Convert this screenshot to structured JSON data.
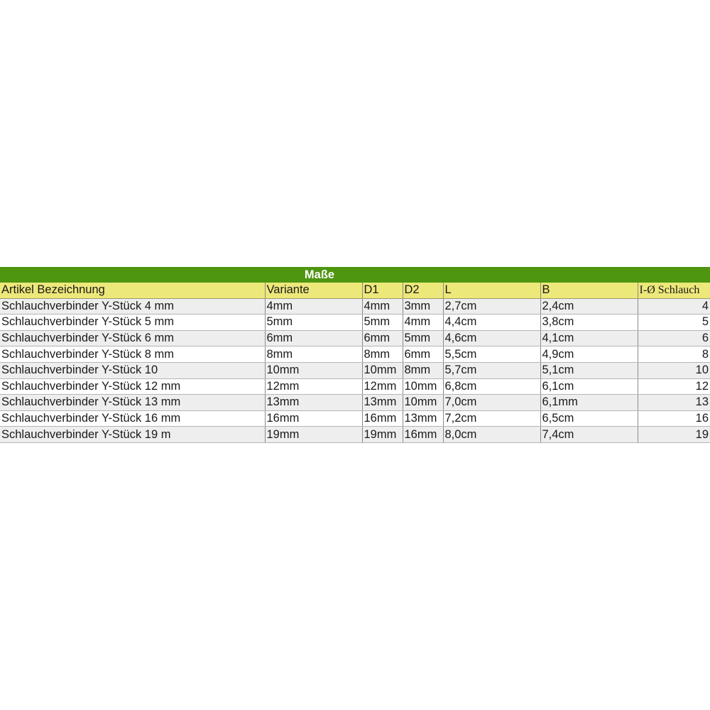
{
  "table": {
    "title": "Maße",
    "headers": [
      "Artikel Bezeichnung",
      "Variante",
      "D1",
      "D2",
      "L",
      "B",
      "I-Ø Schlauch"
    ],
    "rows": [
      [
        "Schlauchverbinder Y-Stück 4 mm",
        "4mm",
        "4mm",
        "3mm",
        "2,7cm",
        "2,4cm",
        "4"
      ],
      [
        "Schlauchverbinder Y-Stück 5 mm",
        "5mm",
        "5mm",
        "4mm",
        "4,4cm",
        "3,8cm",
        "5"
      ],
      [
        "Schlauchverbinder Y-Stück 6 mm",
        "6mm",
        "6mm",
        "5mm",
        "4,6cm",
        "4,1cm",
        "6"
      ],
      [
        "Schlauchverbinder Y-Stück 8 mm",
        "8mm",
        "8mm",
        "6mm",
        "5,5cm",
        "4,9cm",
        "8"
      ],
      [
        "Schlauchverbinder Y-Stück 10",
        "10mm",
        "10mm",
        "8mm",
        "5,7cm",
        "5,1cm",
        "10"
      ],
      [
        "Schlauchverbinder Y-Stück 12 mm",
        "12mm",
        "12mm",
        "10mm",
        "6,8cm",
        "6,1cm",
        "12"
      ],
      [
        "Schlauchverbinder Y-Stück 13 mm",
        "13mm",
        "13mm",
        "10mm",
        "7,0cm",
        "6,1mm",
        "13"
      ],
      [
        "Schlauchverbinder Y-Stück 16 mm",
        "16mm",
        "16mm",
        "13mm",
        "7,2cm",
        "6,5cm",
        "16"
      ],
      [
        "Schlauchverbinder Y-Stück 19 m",
        "19mm",
        "19mm",
        "16mm",
        "8,0cm",
        "7,4cm",
        "19"
      ]
    ],
    "colors": {
      "title_bg": "#4e9510",
      "header_bg": "#ede87a",
      "row_alt": "#eeeeee"
    }
  }
}
